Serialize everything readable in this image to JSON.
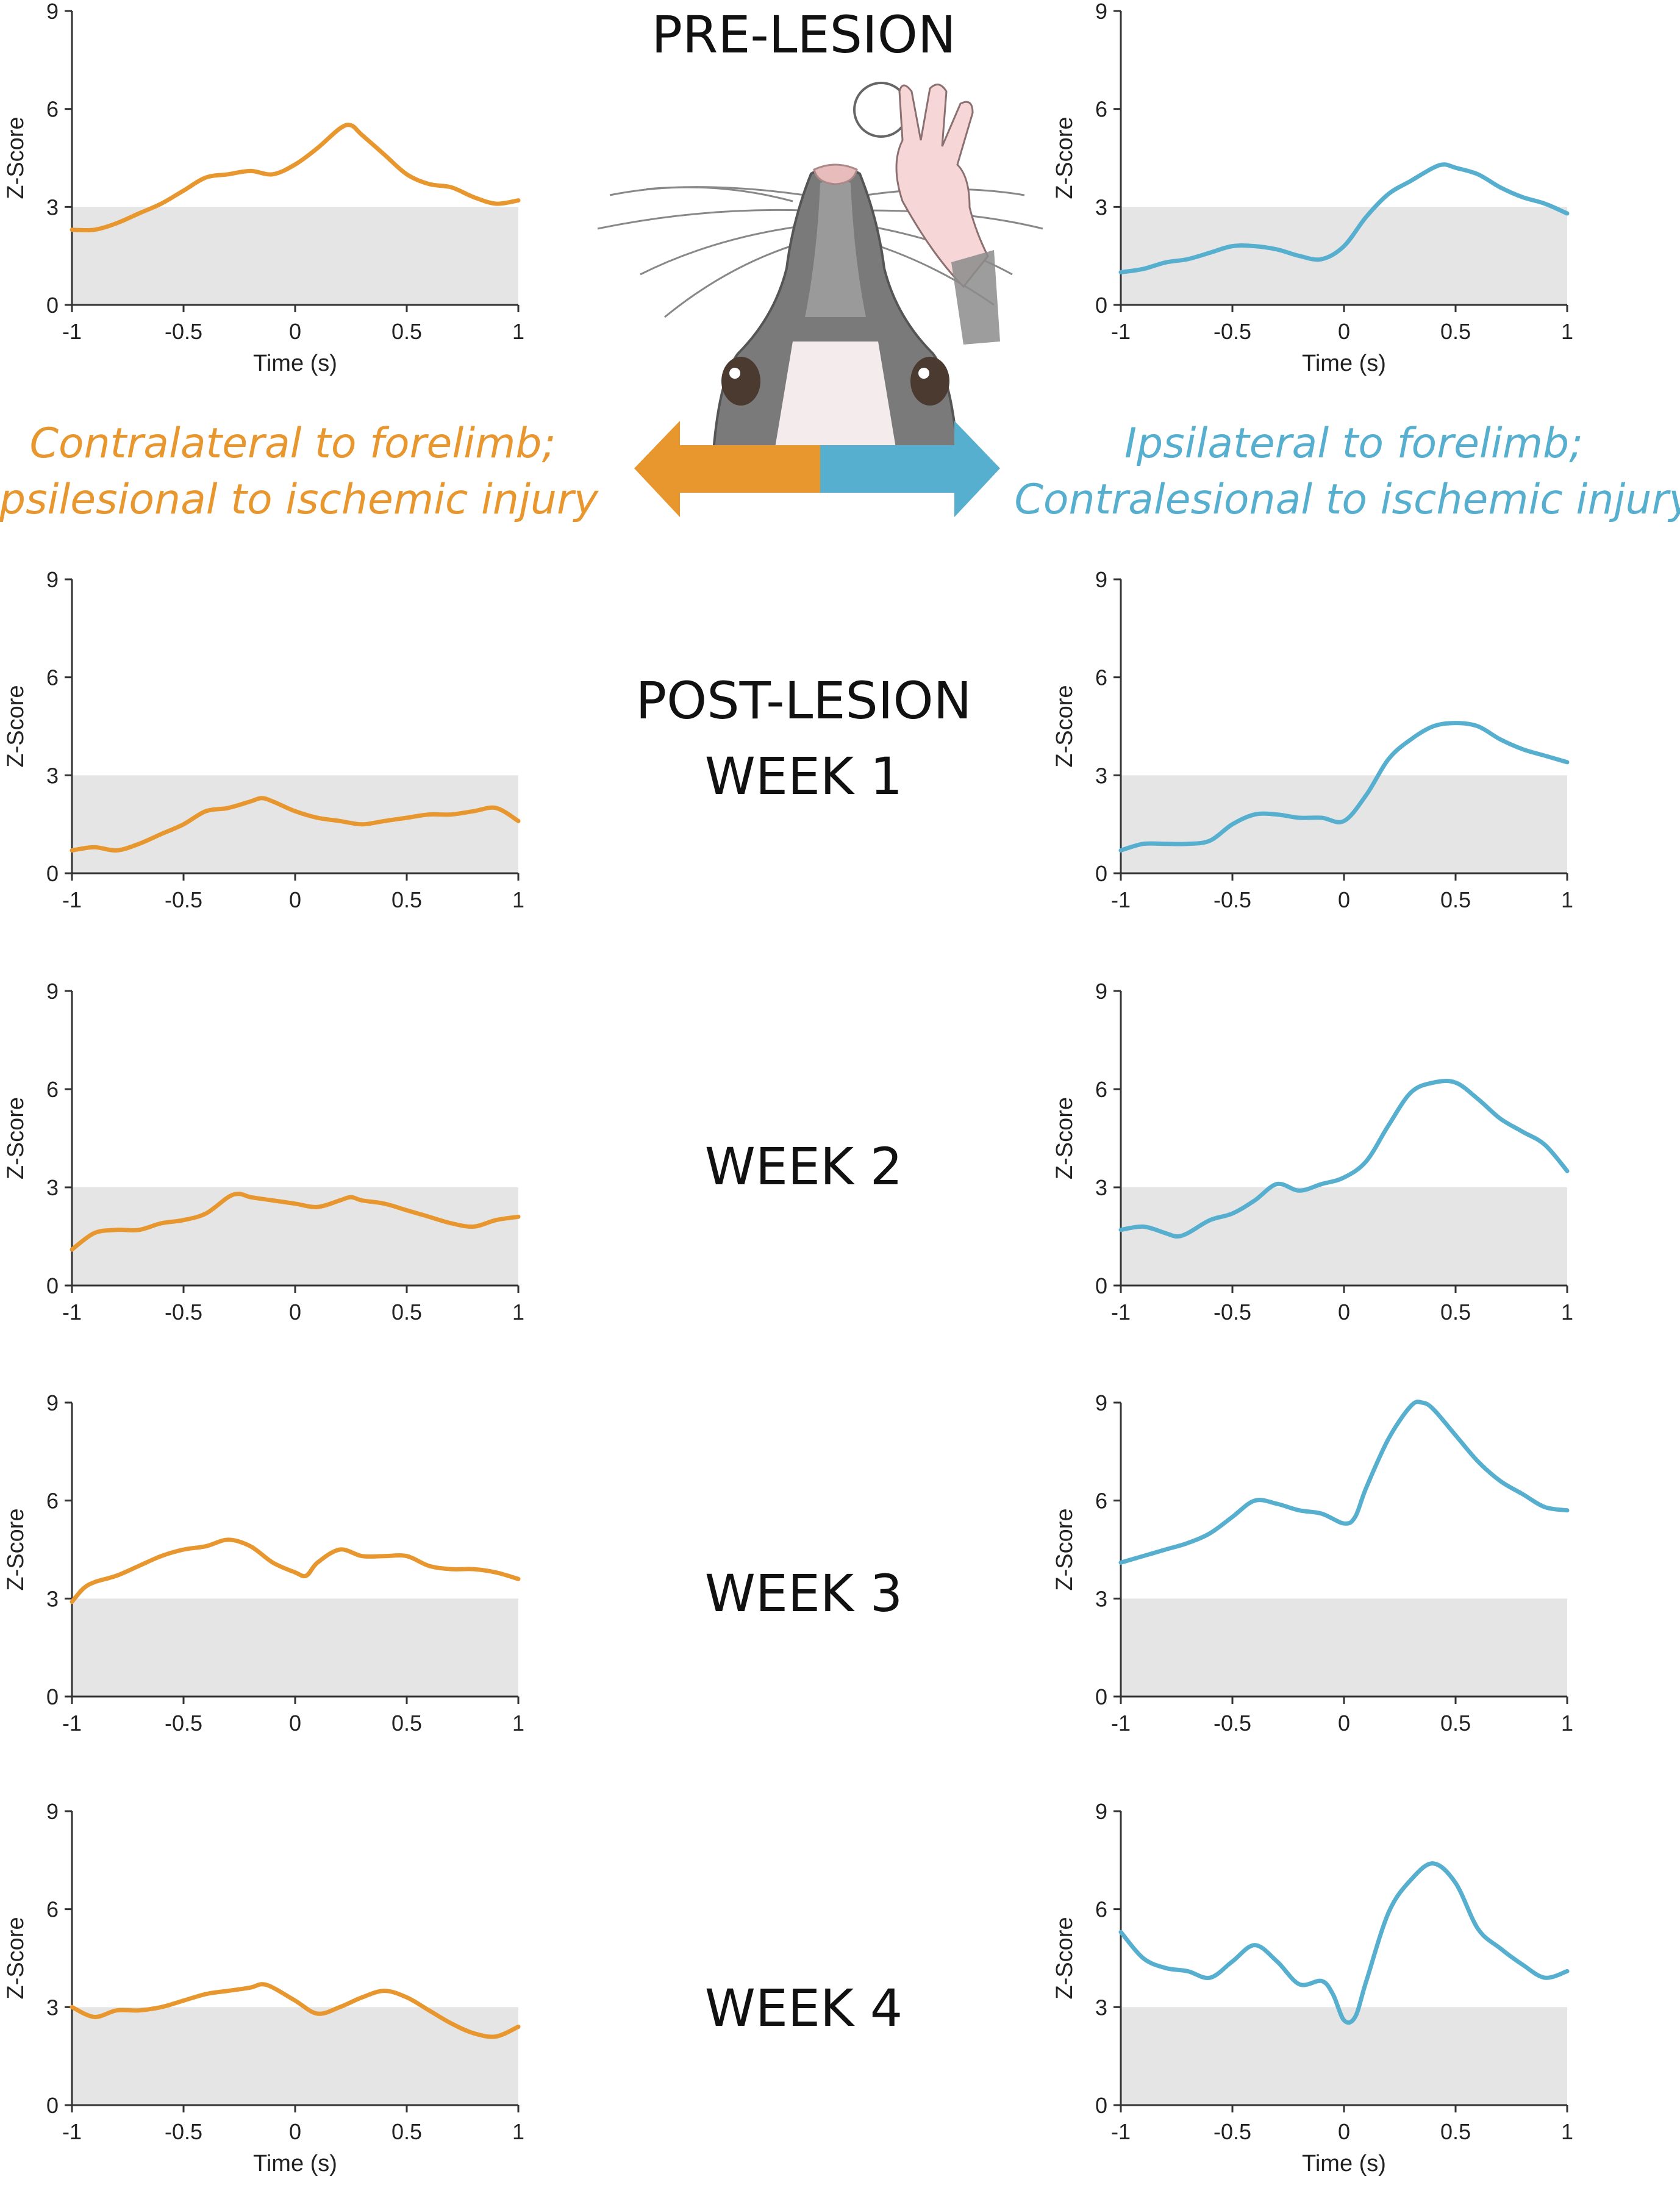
{
  "colors": {
    "orange": "#E8962E",
    "blue": "#56AFCF",
    "threshold_fill": "#E5E5E5",
    "axis": "#333333"
  },
  "stages": {
    "pre": "PRE-LESION",
    "post1_line1": "POST-LESION",
    "post1_line2": "WEEK 1",
    "week2": "WEEK 2",
    "week3": "WEEK 3",
    "week4": "WEEK 4"
  },
  "side_labels": {
    "left_line1": "Contralateral to forelimb;",
    "left_line2": "Ipsilesional to ischemic injury",
    "right_line1": "Ipsilateral to forelimb;",
    "right_line2": "Contralesional to ischemic injury"
  },
  "illustration": {
    "description_icon": "rat-head-reaching-icon",
    "arrow_icon": "double-arrow-icon"
  },
  "chart_data": [
    {
      "type": "line",
      "panel": "pre-lesion-contralateral",
      "color": "orange",
      "xlabel": "Time (s)",
      "ylabel": "Z-Score",
      "xlim": [
        -1,
        1
      ],
      "ylim": [
        0,
        9
      ],
      "xticks": [
        "-1",
        "-0.5",
        "0",
        "0.5",
        "1"
      ],
      "yticks": [
        "0",
        "3",
        "6",
        "9"
      ],
      "threshold": 3,
      "x": [
        -1,
        -0.9,
        -0.8,
        -0.7,
        -0.6,
        -0.5,
        -0.4,
        -0.3,
        -0.2,
        -0.1,
        0,
        0.1,
        0.2,
        0.25,
        0.3,
        0.4,
        0.5,
        0.6,
        0.7,
        0.8,
        0.9,
        1
      ],
      "y": [
        2.3,
        2.3,
        2.5,
        2.8,
        3.1,
        3.5,
        3.9,
        4.0,
        4.1,
        4.0,
        4.3,
        4.8,
        5.4,
        5.5,
        5.2,
        4.6,
        4.0,
        3.7,
        3.6,
        3.3,
        3.1,
        3.2
      ]
    },
    {
      "type": "line",
      "panel": "pre-lesion-ipsilateral",
      "color": "blue",
      "xlabel": "Time (s)",
      "ylabel": "Z-Score",
      "xlim": [
        -1,
        1
      ],
      "ylim": [
        0,
        9
      ],
      "xticks": [
        "-1",
        "-0.5",
        "0",
        "0.5",
        "1"
      ],
      "yticks": [
        "0",
        "3",
        "6",
        "9"
      ],
      "threshold": 3,
      "x": [
        -1,
        -0.9,
        -0.8,
        -0.7,
        -0.6,
        -0.5,
        -0.4,
        -0.3,
        -0.2,
        -0.1,
        0,
        0.1,
        0.2,
        0.3,
        0.4,
        0.45,
        0.5,
        0.6,
        0.7,
        0.8,
        0.9,
        1
      ],
      "y": [
        1.0,
        1.1,
        1.3,
        1.4,
        1.6,
        1.8,
        1.8,
        1.7,
        1.5,
        1.4,
        1.8,
        2.7,
        3.4,
        3.8,
        4.2,
        4.3,
        4.2,
        4.0,
        3.6,
        3.3,
        3.1,
        2.8
      ]
    },
    {
      "type": "line",
      "panel": "week1-contralateral",
      "color": "orange",
      "ylabel": "Z-Score",
      "xlim": [
        -1,
        1
      ],
      "ylim": [
        0,
        9
      ],
      "xticks": [
        "-1",
        "-0.5",
        "0",
        "0.5",
        "1"
      ],
      "yticks": [
        "0",
        "3",
        "6",
        "9"
      ],
      "threshold": 3,
      "x": [
        -1,
        -0.9,
        -0.8,
        -0.7,
        -0.6,
        -0.5,
        -0.4,
        -0.3,
        -0.2,
        -0.15,
        -0.1,
        0,
        0.1,
        0.2,
        0.3,
        0.4,
        0.5,
        0.6,
        0.7,
        0.8,
        0.9,
        1
      ],
      "y": [
        0.7,
        0.8,
        0.7,
        0.9,
        1.2,
        1.5,
        1.9,
        2.0,
        2.2,
        2.3,
        2.2,
        1.9,
        1.7,
        1.6,
        1.5,
        1.6,
        1.7,
        1.8,
        1.8,
        1.9,
        2.0,
        1.6
      ]
    },
    {
      "type": "line",
      "panel": "week1-ipsilateral",
      "color": "blue",
      "ylabel": "Z-Score",
      "xlim": [
        -1,
        1
      ],
      "ylim": [
        0,
        9
      ],
      "xticks": [
        "-1",
        "-0.5",
        "0",
        "0.5",
        "1"
      ],
      "yticks": [
        "0",
        "3",
        "6",
        "9"
      ],
      "threshold": 3,
      "x": [
        -1,
        -0.9,
        -0.8,
        -0.7,
        -0.6,
        -0.5,
        -0.4,
        -0.3,
        -0.2,
        -0.1,
        0,
        0.1,
        0.2,
        0.3,
        0.4,
        0.5,
        0.6,
        0.7,
        0.8,
        0.9,
        1
      ],
      "y": [
        0.7,
        0.9,
        0.9,
        0.9,
        1.0,
        1.5,
        1.8,
        1.8,
        1.7,
        1.7,
        1.6,
        2.4,
        3.5,
        4.1,
        4.5,
        4.6,
        4.5,
        4.1,
        3.8,
        3.6,
        3.4
      ]
    },
    {
      "type": "line",
      "panel": "week2-contralateral",
      "color": "orange",
      "ylabel": "Z-Score",
      "xlim": [
        -1,
        1
      ],
      "ylim": [
        0,
        9
      ],
      "xticks": [
        "-1",
        "-0.5",
        "0",
        "0.5",
        "1"
      ],
      "yticks": [
        "0",
        "3",
        "6",
        "9"
      ],
      "threshold": 3,
      "x": [
        -1,
        -0.9,
        -0.8,
        -0.7,
        -0.6,
        -0.5,
        -0.4,
        -0.3,
        -0.25,
        -0.2,
        -0.1,
        0,
        0.1,
        0.2,
        0.25,
        0.3,
        0.4,
        0.5,
        0.6,
        0.7,
        0.8,
        0.9,
        1
      ],
      "y": [
        1.1,
        1.6,
        1.7,
        1.7,
        1.9,
        2.0,
        2.2,
        2.7,
        2.8,
        2.7,
        2.6,
        2.5,
        2.4,
        2.6,
        2.7,
        2.6,
        2.5,
        2.3,
        2.1,
        1.9,
        1.8,
        2.0,
        2.1
      ]
    },
    {
      "type": "line",
      "panel": "week2-ipsilateral",
      "color": "blue",
      "ylabel": "Z-Score",
      "xlim": [
        -1,
        1
      ],
      "ylim": [
        0,
        9
      ],
      "xticks": [
        "-1",
        "-0.5",
        "0",
        "0.5",
        "1"
      ],
      "yticks": [
        "0",
        "3",
        "6",
        "9"
      ],
      "threshold": 3,
      "x": [
        -1,
        -0.9,
        -0.8,
        -0.75,
        -0.7,
        -0.6,
        -0.5,
        -0.4,
        -0.3,
        -0.2,
        -0.1,
        0,
        0.1,
        0.2,
        0.3,
        0.4,
        0.5,
        0.6,
        0.7,
        0.8,
        0.9,
        1
      ],
      "y": [
        1.7,
        1.8,
        1.6,
        1.5,
        1.6,
        2.0,
        2.2,
        2.6,
        3.1,
        2.9,
        3.1,
        3.3,
        3.8,
        4.9,
        5.9,
        6.2,
        6.2,
        5.7,
        5.1,
        4.7,
        4.3,
        3.5
      ]
    },
    {
      "type": "line",
      "panel": "week3-contralateral",
      "color": "orange",
      "ylabel": "Z-Score",
      "xlim": [
        -1,
        1
      ],
      "ylim": [
        0,
        9
      ],
      "xticks": [
        "-1",
        "-0.5",
        "0",
        "0.5",
        "1"
      ],
      "yticks": [
        "0",
        "3",
        "6",
        "9"
      ],
      "threshold": 3,
      "x": [
        -1,
        -0.95,
        -0.9,
        -0.8,
        -0.7,
        -0.6,
        -0.5,
        -0.4,
        -0.3,
        -0.2,
        -0.1,
        0,
        0.05,
        0.1,
        0.2,
        0.3,
        0.4,
        0.5,
        0.6,
        0.7,
        0.8,
        0.9,
        1
      ],
      "y": [
        2.9,
        3.3,
        3.5,
        3.7,
        4.0,
        4.3,
        4.5,
        4.6,
        4.8,
        4.6,
        4.1,
        3.8,
        3.7,
        4.1,
        4.5,
        4.3,
        4.3,
        4.3,
        4.0,
        3.9,
        3.9,
        3.8,
        3.6
      ]
    },
    {
      "type": "line",
      "panel": "week3-ipsilateral",
      "color": "blue",
      "ylabel": "Z-Score",
      "xlim": [
        -1,
        1
      ],
      "ylim": [
        0,
        9
      ],
      "xticks": [
        "-1",
        "-0.5",
        "0",
        "0.5",
        "1"
      ],
      "yticks": [
        "0",
        "3",
        "6",
        "9"
      ],
      "threshold": 3,
      "x": [
        -1,
        -0.9,
        -0.8,
        -0.7,
        -0.6,
        -0.5,
        -0.4,
        -0.3,
        -0.2,
        -0.1,
        0,
        0.05,
        0.1,
        0.2,
        0.3,
        0.35,
        0.4,
        0.5,
        0.6,
        0.7,
        0.8,
        0.9,
        1
      ],
      "y": [
        4.1,
        4.3,
        4.5,
        4.7,
        5.0,
        5.5,
        6.0,
        5.9,
        5.7,
        5.6,
        5.3,
        5.5,
        6.4,
        7.9,
        8.9,
        9.0,
        8.8,
        8.0,
        7.2,
        6.6,
        6.2,
        5.8,
        5.7
      ]
    },
    {
      "type": "line",
      "panel": "week4-contralateral",
      "color": "orange",
      "xlabel": "Time (s)",
      "ylabel": "Z-Score",
      "xlim": [
        -1,
        1
      ],
      "ylim": [
        0,
        9
      ],
      "xticks": [
        "-1",
        "-0.5",
        "0",
        "0.5",
        "1"
      ],
      "yticks": [
        "0",
        "3",
        "6",
        "9"
      ],
      "threshold": 3,
      "x": [
        -1,
        -0.9,
        -0.8,
        -0.7,
        -0.6,
        -0.5,
        -0.4,
        -0.3,
        -0.2,
        -0.15,
        -0.1,
        0,
        0.1,
        0.2,
        0.3,
        0.4,
        0.5,
        0.6,
        0.7,
        0.8,
        0.9,
        1
      ],
      "y": [
        3.0,
        2.7,
        2.9,
        2.9,
        3.0,
        3.2,
        3.4,
        3.5,
        3.6,
        3.7,
        3.6,
        3.2,
        2.8,
        3.0,
        3.3,
        3.5,
        3.3,
        2.9,
        2.5,
        2.2,
        2.1,
        2.4
      ]
    },
    {
      "type": "line",
      "panel": "week4-ipsilateral",
      "color": "blue",
      "xlabel": "Time (s)",
      "ylabel": "Z-Score",
      "xlim": [
        -1,
        1
      ],
      "ylim": [
        0,
        9
      ],
      "xticks": [
        "-1",
        "-0.5",
        "0",
        "0.5",
        "1"
      ],
      "yticks": [
        "0",
        "3",
        "6",
        "9"
      ],
      "threshold": 3,
      "x": [
        -1,
        -0.9,
        -0.8,
        -0.7,
        -0.6,
        -0.5,
        -0.4,
        -0.3,
        -0.2,
        -0.1,
        -0.05,
        0,
        0.05,
        0.1,
        0.2,
        0.3,
        0.4,
        0.5,
        0.6,
        0.7,
        0.8,
        0.9,
        1
      ],
      "y": [
        5.3,
        4.5,
        4.2,
        4.1,
        3.9,
        4.4,
        4.9,
        4.4,
        3.7,
        3.8,
        3.4,
        2.6,
        2.7,
        3.8,
        5.9,
        6.9,
        7.4,
        6.8,
        5.4,
        4.8,
        4.3,
        3.9,
        4.1
      ]
    }
  ]
}
